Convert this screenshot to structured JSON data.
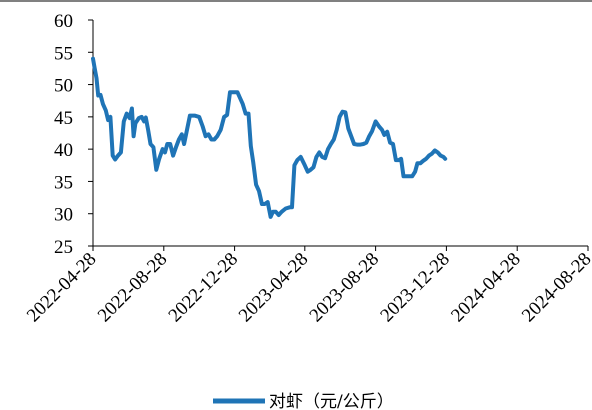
{
  "chart_data": {
    "type": "line",
    "title": "",
    "xlabel": "",
    "ylabel": "",
    "ylim": [
      25,
      60
    ],
    "yticks": [
      "25",
      "30",
      "35",
      "40",
      "45",
      "50",
      "55",
      "60"
    ],
    "xticks": [
      "2022-04-28",
      "2022-08-28",
      "2022-12-28",
      "2023-04-28",
      "2023-08-28",
      "2023-12-28",
      "2024-04-28",
      "2024-08-28"
    ],
    "xrange": [
      "2022-04-28",
      "2024-08-28"
    ],
    "grid": false,
    "legend_position": "bottom",
    "series": [
      {
        "name": "对虾（元/公斤）",
        "color": "#1F74B6",
        "points": [
          [
            "2022-04-28",
            54.0
          ],
          [
            "2022-05-01",
            52.5
          ],
          [
            "2022-05-04",
            51.0
          ],
          [
            "2022-05-07",
            48.3
          ],
          [
            "2022-05-11",
            48.4
          ],
          [
            "2022-05-15",
            47.0
          ],
          [
            "2022-05-20",
            46.0
          ],
          [
            "2022-05-24",
            44.5
          ],
          [
            "2022-05-28",
            45.0
          ],
          [
            "2022-06-01",
            39.0
          ],
          [
            "2022-06-05",
            38.4
          ],
          [
            "2022-06-10",
            39.0
          ],
          [
            "2022-06-15",
            39.5
          ],
          [
            "2022-06-20",
            44.3
          ],
          [
            "2022-06-25",
            45.5
          ],
          [
            "2022-06-30",
            44.8
          ],
          [
            "2022-07-04",
            46.3
          ],
          [
            "2022-07-07",
            42.0
          ],
          [
            "2022-07-10",
            44.0
          ],
          [
            "2022-07-16",
            44.8
          ],
          [
            "2022-07-21",
            45.0
          ],
          [
            "2022-07-25",
            44.3
          ],
          [
            "2022-07-28",
            44.9
          ],
          [
            "2022-08-01",
            43.0
          ],
          [
            "2022-08-05",
            40.8
          ],
          [
            "2022-08-10",
            40.3
          ],
          [
            "2022-08-15",
            36.8
          ],
          [
            "2022-08-20",
            38.5
          ],
          [
            "2022-08-26",
            40.0
          ],
          [
            "2022-08-30",
            39.5
          ],
          [
            "2022-09-03",
            40.8
          ],
          [
            "2022-09-08",
            40.8
          ],
          [
            "2022-09-13",
            39.0
          ],
          [
            "2022-09-18",
            40.3
          ],
          [
            "2022-09-23",
            41.5
          ],
          [
            "2022-09-28",
            42.3
          ],
          [
            "2022-10-02",
            40.8
          ],
          [
            "2022-10-07",
            43.0
          ],
          [
            "2022-10-12",
            45.2
          ],
          [
            "2022-10-20",
            45.2
          ],
          [
            "2022-10-28",
            45.0
          ],
          [
            "2022-11-03",
            43.5
          ],
          [
            "2022-11-08",
            42.0
          ],
          [
            "2022-11-13",
            42.3
          ],
          [
            "2022-11-18",
            41.5
          ],
          [
            "2022-11-23",
            41.5
          ],
          [
            "2022-11-28",
            42.0
          ],
          [
            "2022-12-04",
            43.0
          ],
          [
            "2022-12-10",
            45.0
          ],
          [
            "2022-12-15",
            45.3
          ],
          [
            "2022-12-20",
            48.8
          ],
          [
            "2022-12-27",
            48.8
          ],
          [
            "2023-01-02",
            48.8
          ],
          [
            "2023-01-06",
            48.0
          ],
          [
            "2023-01-11",
            47.0
          ],
          [
            "2023-01-16",
            45.5
          ],
          [
            "2023-01-21",
            45.5
          ],
          [
            "2023-01-25",
            40.5
          ],
          [
            "2023-01-29",
            38.0
          ],
          [
            "2023-02-03",
            34.5
          ],
          [
            "2023-02-08",
            33.5
          ],
          [
            "2023-02-13",
            31.5
          ],
          [
            "2023-02-18",
            31.5
          ],
          [
            "2023-02-23",
            31.8
          ],
          [
            "2023-02-28",
            29.5
          ],
          [
            "2023-03-04",
            30.3
          ],
          [
            "2023-03-09",
            30.3
          ],
          [
            "2023-03-14",
            29.8
          ],
          [
            "2023-03-19",
            30.3
          ],
          [
            "2023-03-26",
            30.8
          ],
          [
            "2023-04-02",
            31.0
          ],
          [
            "2023-04-06",
            31.0
          ],
          [
            "2023-04-10",
            37.5
          ],
          [
            "2023-04-15",
            38.3
          ],
          [
            "2023-04-21",
            38.8
          ],
          [
            "2023-04-28",
            37.5
          ],
          [
            "2023-05-03",
            36.5
          ],
          [
            "2023-05-08",
            36.8
          ],
          [
            "2023-05-13",
            37.2
          ],
          [
            "2023-05-18",
            38.8
          ],
          [
            "2023-05-23",
            39.5
          ],
          [
            "2023-05-28",
            38.8
          ],
          [
            "2023-06-02",
            38.6
          ],
          [
            "2023-06-07",
            40.0
          ],
          [
            "2023-06-12",
            40.8
          ],
          [
            "2023-06-17",
            41.5
          ],
          [
            "2023-06-22",
            43.0
          ],
          [
            "2023-06-27",
            45.0
          ],
          [
            "2023-07-02",
            45.8
          ],
          [
            "2023-07-07",
            45.7
          ],
          [
            "2023-07-12",
            43.2
          ],
          [
            "2023-07-17",
            42.0
          ],
          [
            "2023-07-22",
            40.8
          ],
          [
            "2023-07-27",
            40.7
          ],
          [
            "2023-08-02",
            40.7
          ],
          [
            "2023-08-07",
            40.8
          ],
          [
            "2023-08-12",
            41.0
          ],
          [
            "2023-08-17",
            42.0
          ],
          [
            "2023-08-22",
            42.8
          ],
          [
            "2023-08-28",
            44.3
          ],
          [
            "2023-09-03",
            43.5
          ],
          [
            "2023-09-08",
            43.0
          ],
          [
            "2023-09-12",
            42.2
          ],
          [
            "2023-09-17",
            42.7
          ],
          [
            "2023-09-22",
            41.0
          ],
          [
            "2023-09-27",
            40.8
          ],
          [
            "2023-10-02",
            38.3
          ],
          [
            "2023-10-07",
            38.3
          ],
          [
            "2023-10-11",
            38.5
          ],
          [
            "2023-10-15",
            35.8
          ],
          [
            "2023-10-20",
            35.8
          ],
          [
            "2023-10-25",
            35.8
          ],
          [
            "2023-10-30",
            35.8
          ],
          [
            "2023-11-04",
            36.5
          ],
          [
            "2023-11-08",
            37.8
          ],
          [
            "2023-11-13",
            37.8
          ],
          [
            "2023-11-18",
            38.2
          ],
          [
            "2023-11-23",
            38.5
          ],
          [
            "2023-11-28",
            39.0
          ],
          [
            "2023-12-03",
            39.3
          ],
          [
            "2023-12-08",
            39.8
          ],
          [
            "2023-12-13",
            39.5
          ],
          [
            "2023-12-18",
            39.0
          ],
          [
            "2023-12-23",
            38.8
          ],
          [
            "2023-12-26",
            38.5
          ]
        ]
      }
    ]
  }
}
